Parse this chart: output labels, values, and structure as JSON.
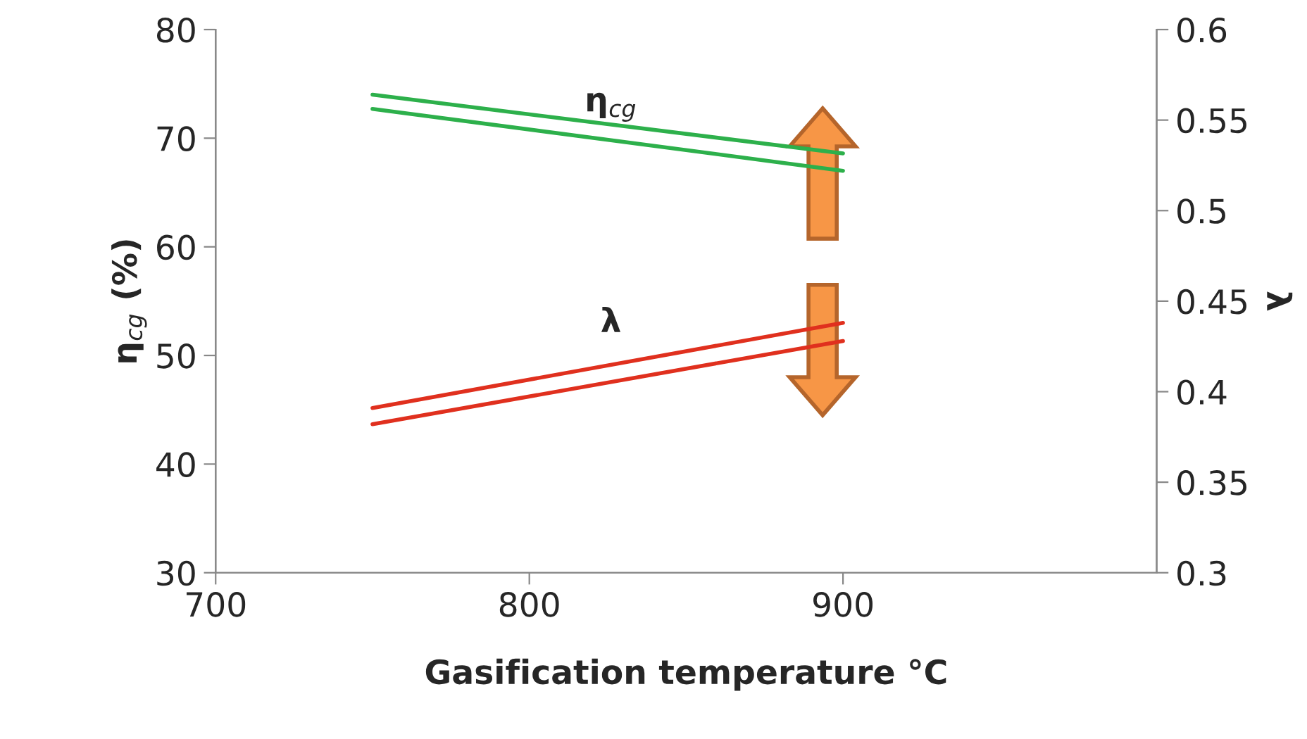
{
  "chart_data": {
    "type": "line",
    "xlabel": "Gasification temperature °C",
    "ylabel": "η$_{cg}$ (%)",
    "y2label": "λ",
    "xlim": [
      700,
      1000
    ],
    "xticks": [
      700,
      800,
      900
    ],
    "ylim": [
      30,
      80
    ],
    "yticks": [
      30,
      40,
      50,
      60,
      70,
      80
    ],
    "y2lim": [
      0.3,
      0.6
    ],
    "y2ticks": [
      0.3,
      0.35,
      0.4,
      0.45,
      0.5,
      0.55,
      0.6
    ],
    "grid": false,
    "legend": false,
    "x": [
      750,
      900
    ],
    "series": [
      {
        "color": "#2db04b",
        "values": [
          74.0,
          68.6
        ]
      },
      {
        "color": "#2db04b",
        "values": [
          72.7,
          67.0
        ]
      },
      {
        "color": "#e0301e",
        "values": [
          0.391,
          0.438
        ],
        "axis": "y2"
      },
      {
        "color": "#e0301e",
        "values": [
          0.382,
          0.428
        ],
        "axis": "y2"
      }
    ],
    "annotations": [
      "η$_{cg}$",
      "λ"
    ]
  }
}
